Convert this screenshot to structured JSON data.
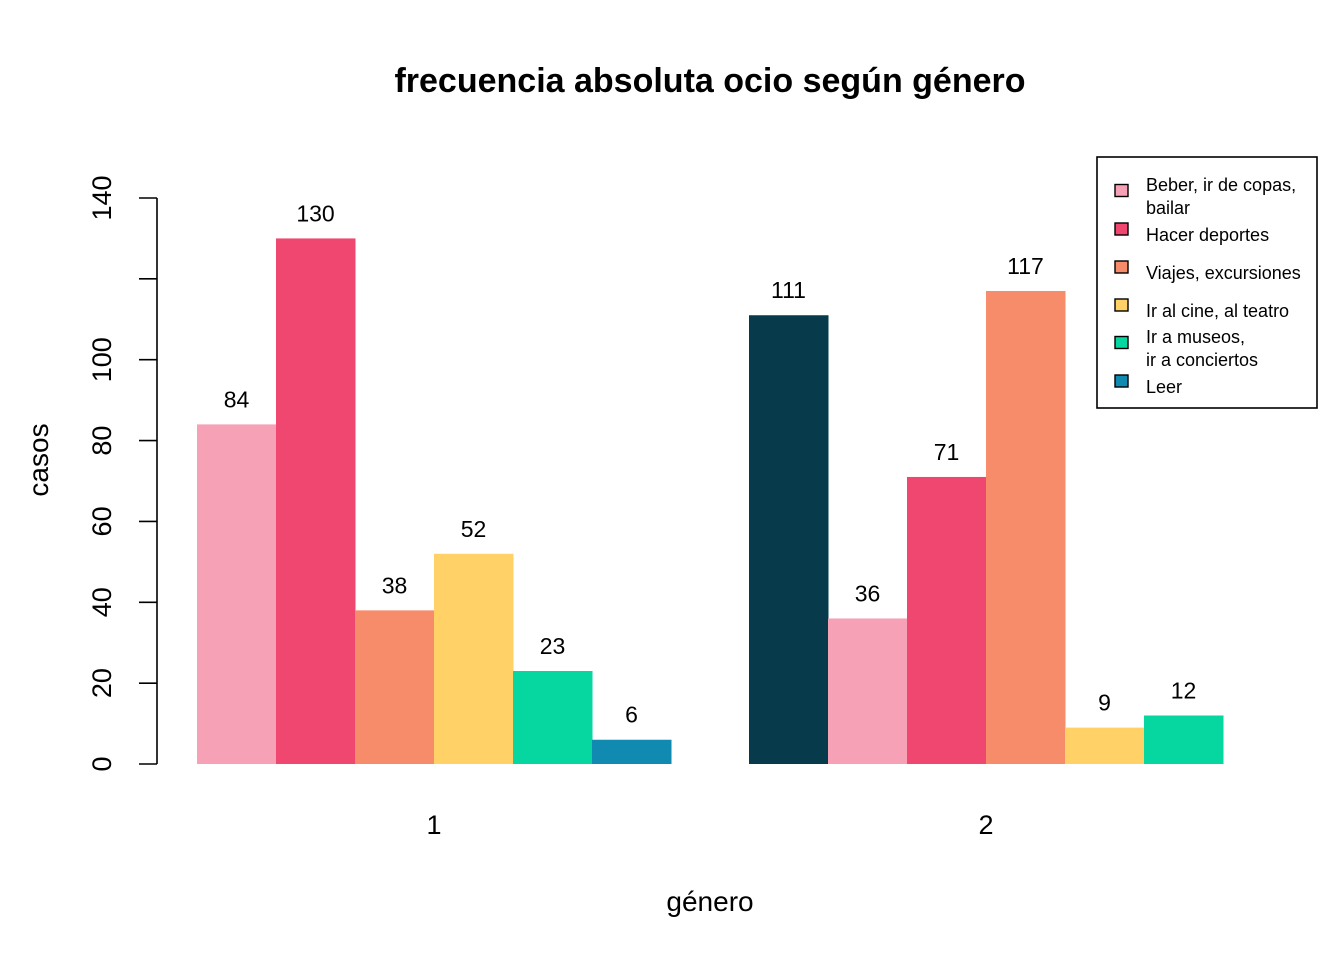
{
  "chart_data": {
    "type": "bar",
    "title": "frecuencia absoluta ocio según género",
    "xlabel": "género",
    "ylabel": "casos",
    "ylim": [
      0,
      140
    ],
    "yticks": [
      0,
      20,
      40,
      60,
      80,
      100,
      140
    ],
    "grid": false,
    "legend_position": "top-right",
    "groups": [
      {
        "label": "1",
        "bars": [
          {
            "value": 84,
            "label": "84",
            "color": "#F6A1B6"
          },
          {
            "value": 130,
            "label": "130",
            "color": "#EF476F"
          },
          {
            "value": 38,
            "label": "38",
            "color": "#F78C6B"
          },
          {
            "value": 52,
            "label": "52",
            "color": "#FFD166"
          },
          {
            "value": 23,
            "label": "23",
            "color": "#06D6A0"
          },
          {
            "value": 6,
            "label": "6",
            "color": "#118AB2"
          }
        ]
      },
      {
        "label": "2",
        "bars": [
          {
            "value": 111,
            "label": "111",
            "color": "#073B4C"
          },
          {
            "value": 36,
            "label": "36",
            "color": "#F6A1B6"
          },
          {
            "value": 71,
            "label": "71",
            "color": "#EF476F"
          },
          {
            "value": 117,
            "label": "117",
            "color": "#F78C6B"
          },
          {
            "value": 9,
            "label": "9",
            "color": "#FFD166"
          },
          {
            "value": 12,
            "label": "12",
            "color": "#06D6A0"
          }
        ]
      }
    ],
    "legend": [
      {
        "lines": [
          "Beber, ir de copas,",
          "bailar"
        ],
        "color": "#F6A1B6"
      },
      {
        "lines": [
          "Hacer deportes"
        ],
        "color": "#EF476F"
      },
      {
        "lines": [
          "Viajes, excursiones"
        ],
        "color": "#F78C6B"
      },
      {
        "lines": [
          "Ir al cine, al teatro"
        ],
        "color": "#FFD166"
      },
      {
        "lines": [
          "Ir a museos,",
          "ir a conciertos"
        ],
        "color": "#06D6A0"
      },
      {
        "lines": [
          "Leer"
        ],
        "color": "#118AB2"
      }
    ]
  }
}
